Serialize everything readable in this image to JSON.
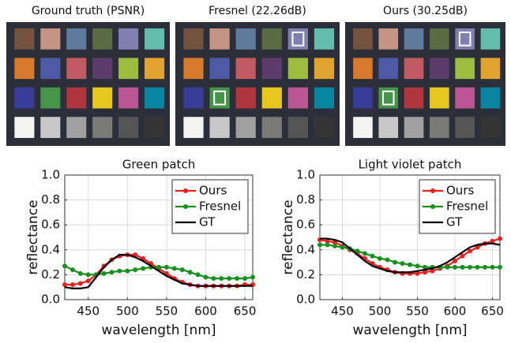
{
  "images": [
    {
      "caption": "Ground truth (PSNR)"
    },
    {
      "caption": "Fresnel (22.26dB)"
    },
    {
      "caption": "Ours (30.25dB)"
    }
  ],
  "chart_data": [
    {
      "type": "line",
      "title": "Green patch",
      "x_label": "wavelength [nm]",
      "y_label": "reflectance",
      "x": [
        420,
        430,
        440,
        450,
        460,
        470,
        480,
        490,
        500,
        510,
        520,
        530,
        540,
        550,
        560,
        570,
        580,
        590,
        600,
        610,
        620,
        630,
        640,
        650,
        660
      ],
      "series": [
        {
          "name": "Ours",
          "color": "#e8211f",
          "marker": true,
          "values": [
            0.12,
            0.12,
            0.13,
            0.15,
            0.2,
            0.27,
            0.32,
            0.35,
            0.36,
            0.36,
            0.33,
            0.29,
            0.25,
            0.21,
            0.17,
            0.14,
            0.12,
            0.11,
            0.11,
            0.11,
            0.11,
            0.11,
            0.11,
            0.12,
            0.12
          ]
        },
        {
          "name": "Fresnel",
          "color": "#17901e",
          "marker": true,
          "values": [
            0.27,
            0.24,
            0.21,
            0.2,
            0.2,
            0.21,
            0.22,
            0.23,
            0.23,
            0.24,
            0.25,
            0.26,
            0.26,
            0.26,
            0.25,
            0.24,
            0.22,
            0.2,
            0.18,
            0.17,
            0.17,
            0.17,
            0.17,
            0.17,
            0.18
          ]
        },
        {
          "name": "GT",
          "color": "#000000",
          "marker": false,
          "values": [
            0.1,
            0.09,
            0.09,
            0.1,
            0.18,
            0.26,
            0.32,
            0.36,
            0.36,
            0.34,
            0.31,
            0.27,
            0.23,
            0.19,
            0.16,
            0.13,
            0.12,
            0.11,
            0.11,
            0.11,
            0.11,
            0.11,
            0.11,
            0.11,
            0.11
          ]
        }
      ],
      "xlim": [
        420,
        660
      ],
      "xticks": [
        450,
        500,
        550,
        600,
        650
      ],
      "ylim": [
        0,
        1
      ],
      "yticks": [
        {
          "value": 0,
          "label": "0.0"
        },
        0.2,
        0.4,
        0.6,
        0.8,
        {
          "value": 1,
          "label": "1.0"
        }
      ],
      "grid": true,
      "legend": "upper right"
    },
    {
      "type": "line",
      "title": "Light violet patch",
      "x_label": "wavelength [nm]",
      "y_label": "reflectance",
      "x": [
        420,
        430,
        440,
        450,
        460,
        470,
        480,
        490,
        500,
        510,
        520,
        530,
        540,
        550,
        560,
        570,
        580,
        590,
        600,
        610,
        620,
        630,
        640,
        650,
        660
      ],
      "series": [
        {
          "name": "Ours",
          "color": "#e8211f",
          "marker": true,
          "values": [
            0.48,
            0.47,
            0.46,
            0.43,
            0.4,
            0.37,
            0.33,
            0.29,
            0.26,
            0.24,
            0.22,
            0.21,
            0.21,
            0.21,
            0.22,
            0.23,
            0.25,
            0.27,
            0.31,
            0.35,
            0.39,
            0.42,
            0.45,
            0.47,
            0.49
          ]
        },
        {
          "name": "Fresnel",
          "color": "#17901e",
          "marker": true,
          "values": [
            0.44,
            0.44,
            0.43,
            0.42,
            0.41,
            0.39,
            0.37,
            0.35,
            0.33,
            0.32,
            0.3,
            0.29,
            0.28,
            0.27,
            0.26,
            0.26,
            0.26,
            0.26,
            0.26,
            0.26,
            0.26,
            0.26,
            0.26,
            0.26,
            0.26
          ]
        },
        {
          "name": "GT",
          "color": "#000000",
          "marker": false,
          "values": [
            0.49,
            0.49,
            0.48,
            0.46,
            0.41,
            0.36,
            0.31,
            0.27,
            0.25,
            0.23,
            0.22,
            0.22,
            0.22,
            0.23,
            0.24,
            0.25,
            0.27,
            0.3,
            0.34,
            0.38,
            0.42,
            0.44,
            0.45,
            0.45,
            0.44
          ]
        }
      ],
      "xlim": [
        420,
        660
      ],
      "xticks": [
        450,
        500,
        550,
        600,
        650
      ],
      "ylim": [
        0,
        1
      ],
      "yticks": [
        {
          "value": 0,
          "label": "0.0"
        },
        0.2,
        0.4,
        0.6,
        0.8,
        {
          "value": 1,
          "label": "1.0"
        }
      ],
      "grid": true,
      "legend": "upper right"
    }
  ]
}
